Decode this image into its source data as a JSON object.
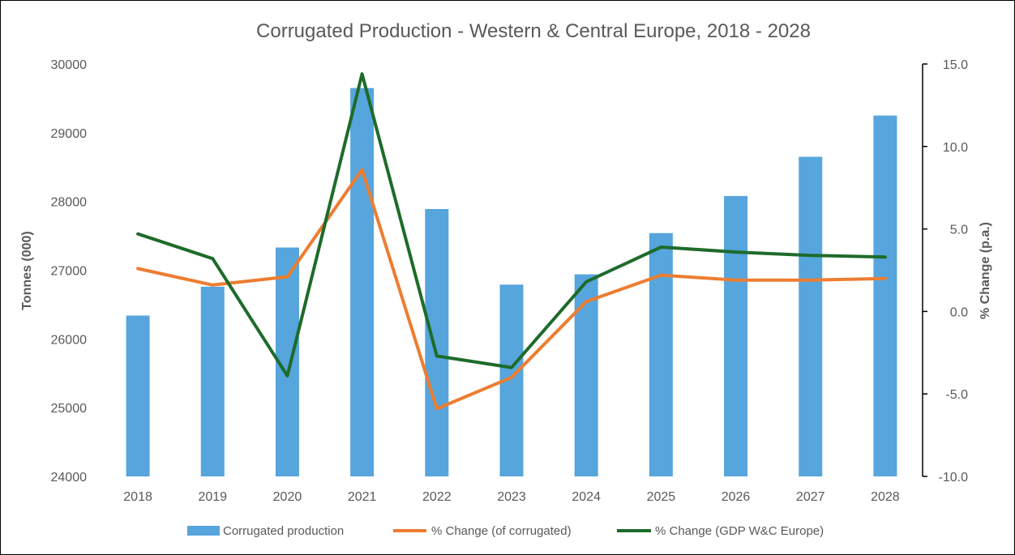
{
  "chart_data": {
    "type": "bar",
    "title": "Corrugated Production - Western & Central Europe, 2018 - 2028",
    "ylabel_left": "Tonnes (000)",
    "ylabel_right": "% Change (p.a.)",
    "categories": [
      "2018",
      "2019",
      "2020",
      "2021",
      "2022",
      "2023",
      "2024",
      "2025",
      "2026",
      "2027",
      "2028"
    ],
    "ylim_left": [
      24000,
      30000
    ],
    "yticks_left": [
      "24000",
      "25000",
      "26000",
      "27000",
      "28000",
      "29000",
      "30000"
    ],
    "ylim_right": [
      -10,
      15
    ],
    "yticks_right": [
      "-10.0",
      "-5.0",
      "0.0",
      "5.0",
      "10.0",
      "15.0"
    ],
    "grid": false,
    "legend_position": "bottom",
    "series": [
      {
        "name": "Corrugated production",
        "kind": "bar",
        "axis": "left",
        "color": "#56A5DD",
        "values": [
          26340,
          26760,
          27330,
          29650,
          27890,
          26790,
          26940,
          27540,
          28080,
          28650,
          29250
        ]
      },
      {
        "name": "% Change (of corrugated)",
        "kind": "line",
        "axis": "right",
        "color": "#ED7D31",
        "values": [
          2.6,
          1.6,
          2.1,
          8.6,
          -5.9,
          -4.0,
          0.6,
          2.2,
          1.9,
          1.9,
          2.0
        ]
      },
      {
        "name": "% Change (GDP W&C Europe)",
        "kind": "line",
        "axis": "right",
        "color": "#1E6B2A",
        "values": [
          4.7,
          3.2,
          -3.9,
          14.4,
          -2.7,
          -3.4,
          1.8,
          3.9,
          3.6,
          3.4,
          3.3
        ]
      }
    ]
  }
}
